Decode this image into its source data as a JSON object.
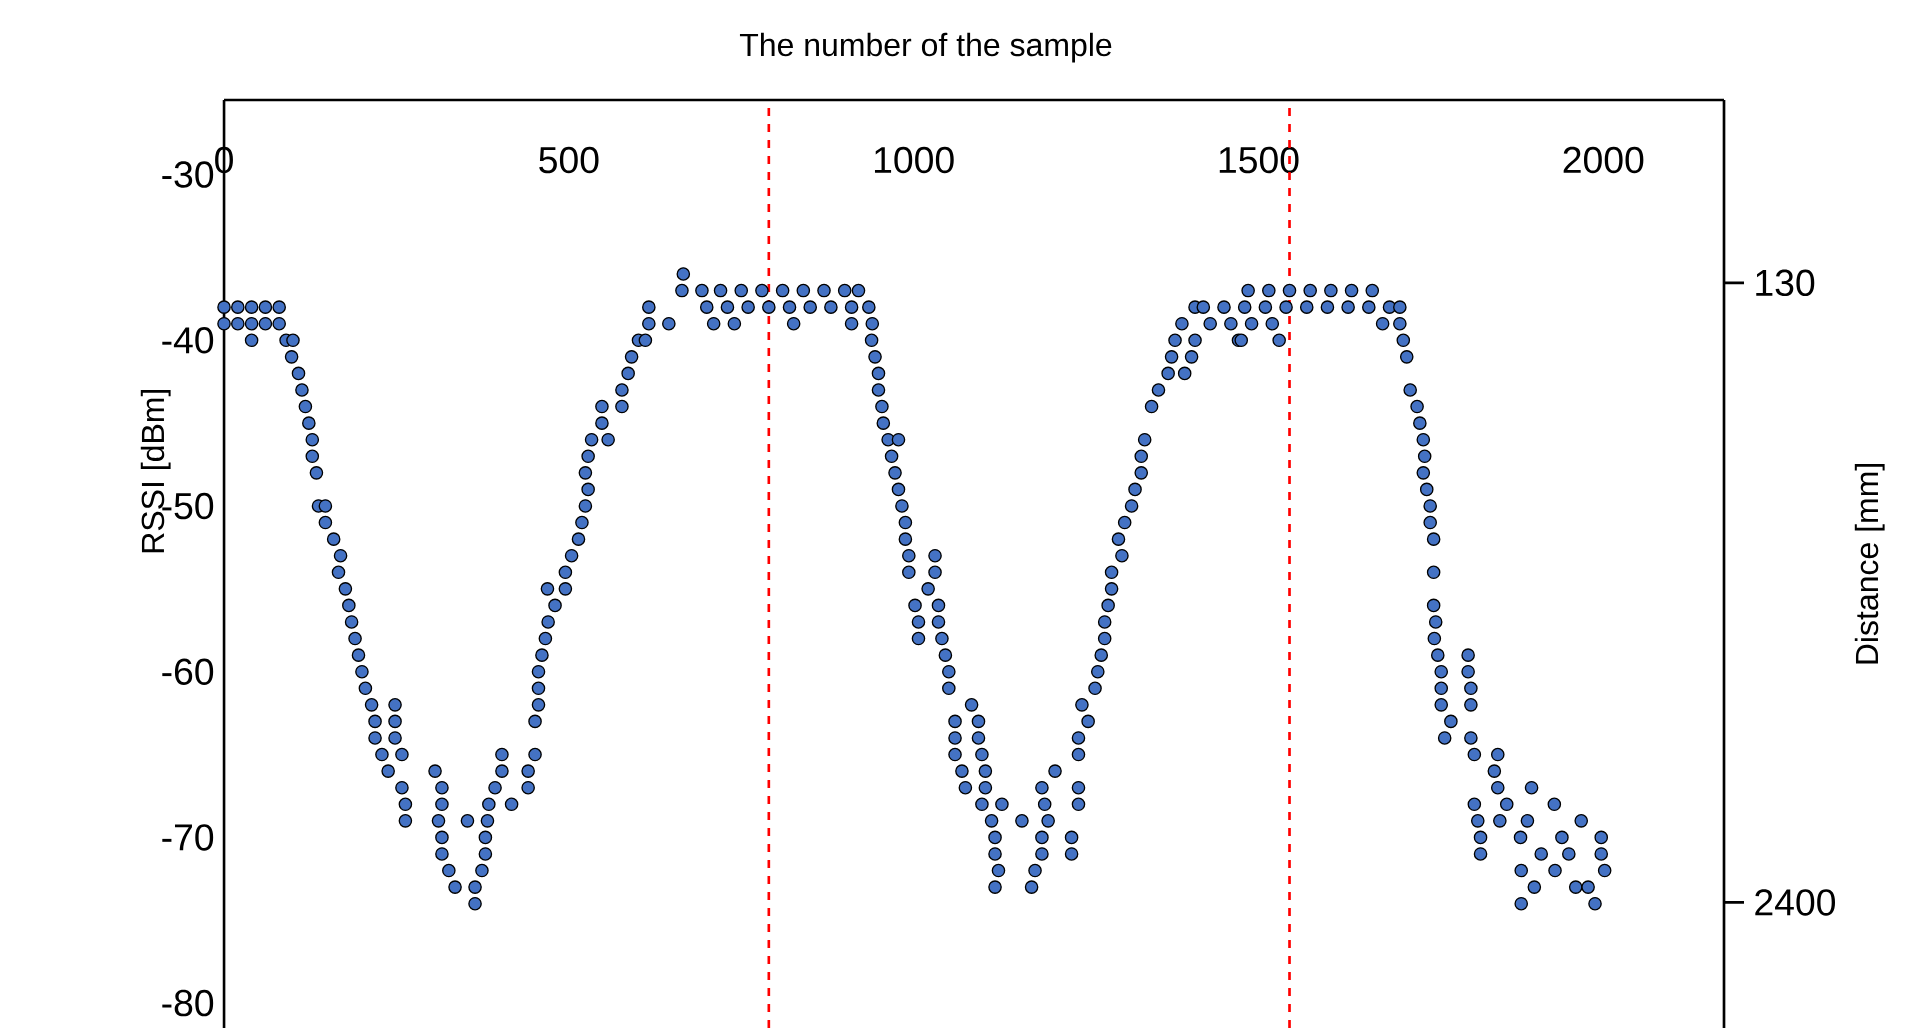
{
  "chart_data": {
    "type": "scatter",
    "xlabel": "The number of the sample",
    "ylabel": "RSSI [dBm]",
    "y2label": "Distance [mm]",
    "xlim": [
      0,
      2175
    ],
    "xticks": [
      0,
      500,
      1000,
      1500,
      2000
    ],
    "ylim": [
      -81.5,
      -25.5
    ],
    "yticks": [
      -30,
      -40,
      -50,
      -60,
      -70,
      -80
    ],
    "y2lim": [
      2860,
      -540
    ],
    "y2ticks": [
      130,
      2400
    ],
    "marker": "circle",
    "ref_lines": [
      {
        "axis": "x",
        "value": 790,
        "color": "#ff0000",
        "line_style": "dashed"
      },
      {
        "axis": "x",
        "value": 1545,
        "color": "#ff0000",
        "line_style": "dashed"
      }
    ],
    "series": [
      {
        "color": "#4472c4",
        "x": [
          0,
          0,
          20,
          20,
          40,
          40,
          40,
          60,
          60,
          80,
          80,
          90,
          100,
          98,
          108,
          113,
          118,
          123,
          128,
          128,
          134,
          137,
          147,
          147,
          159,
          169,
          166,
          176,
          181,
          185,
          190,
          195,
          200,
          205,
          214,
          248,
          219,
          248,
          219,
          248,
          229,
          258,
          238,
          306,
          258,
          316,
          263,
          316,
          263,
          311,
          353,
          382,
          316,
          379,
          316,
          379,
          326,
          374,
          335,
          364,
          364,
          384,
          393,
          403,
          403,
          451,
          441,
          441,
          417,
          451,
          456,
          456,
          456,
          461,
          466,
          470,
          480,
          469,
          495,
          495,
          504,
          514,
          519,
          524,
          528,
          524,
          528,
          533,
          557,
          548,
          548,
          577,
          577,
          586,
          591,
          601,
          611,
          616,
          645,
          616,
          664,
          666,
          693,
          700,
          730,
          760,
          790,
          820,
          850,
          880,
          910,
          935,
          720,
          750,
          780,
          810,
          840,
          870,
          900,
          920,
          710,
          740,
          826,
          910,
          940,
          939,
          944,
          949,
          949,
          954,
          956,
          963,
          978,
          968,
          973,
          978,
          983,
          988,
          988,
          993,
          1031,
          993,
          1031,
          1021,
          1002,
          1036,
          1007,
          1036,
          1007,
          1041,
          1046,
          1051,
          1051,
          1084,
          1060,
          1094,
          1060,
          1094,
          1060,
          1099,
          1070,
          1104,
          1075,
          1104,
          1099,
          1128,
          1113,
          1157,
          1118,
          1186,
          1118,
          1186,
          1123,
          1176,
          1118,
          1171,
          1195,
          1190,
          1239,
          1229,
          1229,
          1186,
          1239,
          1205,
          1239,
          1239,
          1253,
          1244,
          1263,
          1267,
          1272,
          1277,
          1277,
          1282,
          1287,
          1287,
          1302,
          1297,
          1306,
          1316,
          1321,
          1330,
          1330,
          1335,
          1345,
          1355,
          1369,
          1393,
          1374,
          1403,
          1379,
          1408,
          1389,
          1471,
          1408,
          1420,
          1450,
          1480,
          1510,
          1540,
          1570,
          1600,
          1630,
          1660,
          1690,
          1705,
          1485,
          1515,
          1545,
          1575,
          1605,
          1635,
          1665,
          1430,
          1460,
          1490,
          1520,
          1680,
          1705,
          1475,
          1530,
          1710,
          1715,
          1720,
          1730,
          1734,
          1739,
          1741,
          1739,
          1744,
          1749,
          1749,
          1754,
          1754,
          1754,
          1757,
          1755,
          1760,
          1804,
          1765,
          1804,
          1765,
          1808,
          1765,
          1808,
          1779,
          1770,
          1808,
          1813,
          1847,
          1842,
          1847,
          1896,
          1813,
          1860,
          1929,
          1818,
          1850,
          1890,
          1968,
          1822,
          1880,
          1940,
          1997,
          1822,
          1910,
          1950,
          1997,
          1881,
          1930,
          2002,
          1900,
          1960,
          1978,
          1881,
          1988
        ],
        "values": [
          -38,
          -39,
          -38,
          -39,
          -38,
          -39,
          -40,
          -38,
          -39,
          -38,
          -39,
          -40,
          -40,
          -41,
          -42,
          -43,
          -44,
          -45,
          -46,
          -47,
          -48,
          -50,
          -50,
          -51,
          -52,
          -53,
          -54,
          -55,
          -56,
          -57,
          -58,
          -59,
          -60,
          -61,
          -62,
          -62,
          -63,
          -63,
          -64,
          -64,
          -65,
          -65,
          -66,
          -66,
          -67,
          -67,
          -68,
          -68,
          -69,
          -69,
          -69,
          -69,
          -70,
          -70,
          -71,
          -71,
          -72,
          -72,
          -73,
          -73,
          -74,
          -68,
          -67,
          -66,
          -65,
          -65,
          -66,
          -67,
          -68,
          -63,
          -62,
          -61,
          -60,
          -59,
          -58,
          -57,
          -56,
          -55,
          -55,
          -54,
          -53,
          -52,
          -51,
          -50,
          -49,
          -48,
          -47,
          -46,
          -46,
          -45,
          -44,
          -44,
          -43,
          -42,
          -41,
          -40,
          -40,
          -39,
          -39,
          -38,
          -37,
          -36,
          -37,
          -38,
          -38,
          -38,
          -38,
          -38,
          -38,
          -38,
          -38,
          -38,
          -37,
          -37,
          -37,
          -37,
          -37,
          -37,
          -37,
          -37,
          -39,
          -39,
          -39,
          -39,
          -39,
          -40,
          -41,
          -42,
          -43,
          -44,
          -45,
          -46,
          -46,
          -47,
          -48,
          -49,
          -50,
          -51,
          -52,
          -53,
          -53,
          -54,
          -54,
          -55,
          -56,
          -56,
          -57,
          -57,
          -58,
          -58,
          -59,
          -60,
          -61,
          -62,
          -63,
          -63,
          -64,
          -64,
          -65,
          -65,
          -66,
          -66,
          -67,
          -67,
          -68,
          -68,
          -69,
          -69,
          -70,
          -70,
          -71,
          -71,
          -72,
          -72,
          -73,
          -73,
          -69,
          -68,
          -68,
          -70,
          -71,
          -67,
          -67,
          -66,
          -65,
          -64,
          -63,
          -62,
          -61,
          -60,
          -59,
          -58,
          -57,
          -56,
          -55,
          -54,
          -53,
          -52,
          -51,
          -50,
          -49,
          -48,
          -47,
          -46,
          -44,
          -43,
          -42,
          -42,
          -41,
          -41,
          -40,
          -40,
          -39,
          -40,
          -38,
          -38,
          -38,
          -38,
          -38,
          -38,
          -38,
          -38,
          -38,
          -38,
          -38,
          -38,
          -37,
          -37,
          -37,
          -37,
          -37,
          -37,
          -37,
          -39,
          -39,
          -39,
          -39,
          -39,
          -39,
          -40,
          -40,
          -40,
          -41,
          -43,
          -44,
          -45,
          -46,
          -47,
          -48,
          -49,
          -50,
          -51,
          -52,
          -54,
          -56,
          -57,
          -58,
          -59,
          -59,
          -60,
          -60,
          -61,
          -61,
          -62,
          -62,
          -63,
          -64,
          -64,
          -65,
          -65,
          -66,
          -67,
          -67,
          -68,
          -68,
          -68,
          -69,
          -69,
          -69,
          -69,
          -70,
          -70,
          -70,
          -70,
          -71,
          -71,
          -71,
          -71,
          -72,
          -72,
          -72,
          -73,
          -73,
          -73,
          -74,
          -74
        ]
      }
    ]
  }
}
